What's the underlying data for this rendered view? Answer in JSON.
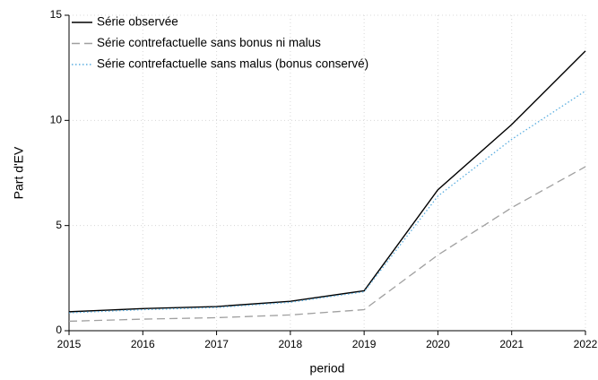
{
  "chart_data": {
    "type": "line",
    "x_label": "period",
    "y_label": "Part d'EV",
    "x": [
      2015,
      2016,
      2017,
      2018,
      2019,
      2020,
      2021,
      2022
    ],
    "xlim": [
      2015,
      2022
    ],
    "xticks": [
      2015,
      2016,
      2017,
      2018,
      2019,
      2020,
      2021,
      2022
    ],
    "ylim": [
      0,
      15
    ],
    "yticks": [
      0,
      5,
      10,
      15
    ],
    "grid": true,
    "legend": "upper left",
    "series": [
      {
        "name": "Série observée",
        "color": "#000000",
        "style": "solid",
        "values": [
          0.9,
          1.05,
          1.15,
          1.4,
          1.9,
          6.7,
          9.8,
          13.3
        ]
      },
      {
        "name": "Série contrefactuelle sans bonus ni malus",
        "color": "#a0a0a0",
        "style": "dashed",
        "values": [
          0.45,
          0.55,
          0.62,
          0.75,
          1.0,
          3.6,
          5.85,
          7.8
        ]
      },
      {
        "name": "Série contrefactuelle sans malus (bonus conservé)",
        "color": "#5aaee0",
        "style": "dotted",
        "values": [
          0.85,
          1.0,
          1.1,
          1.35,
          1.85,
          6.4,
          9.1,
          11.4
        ]
      }
    ]
  }
}
